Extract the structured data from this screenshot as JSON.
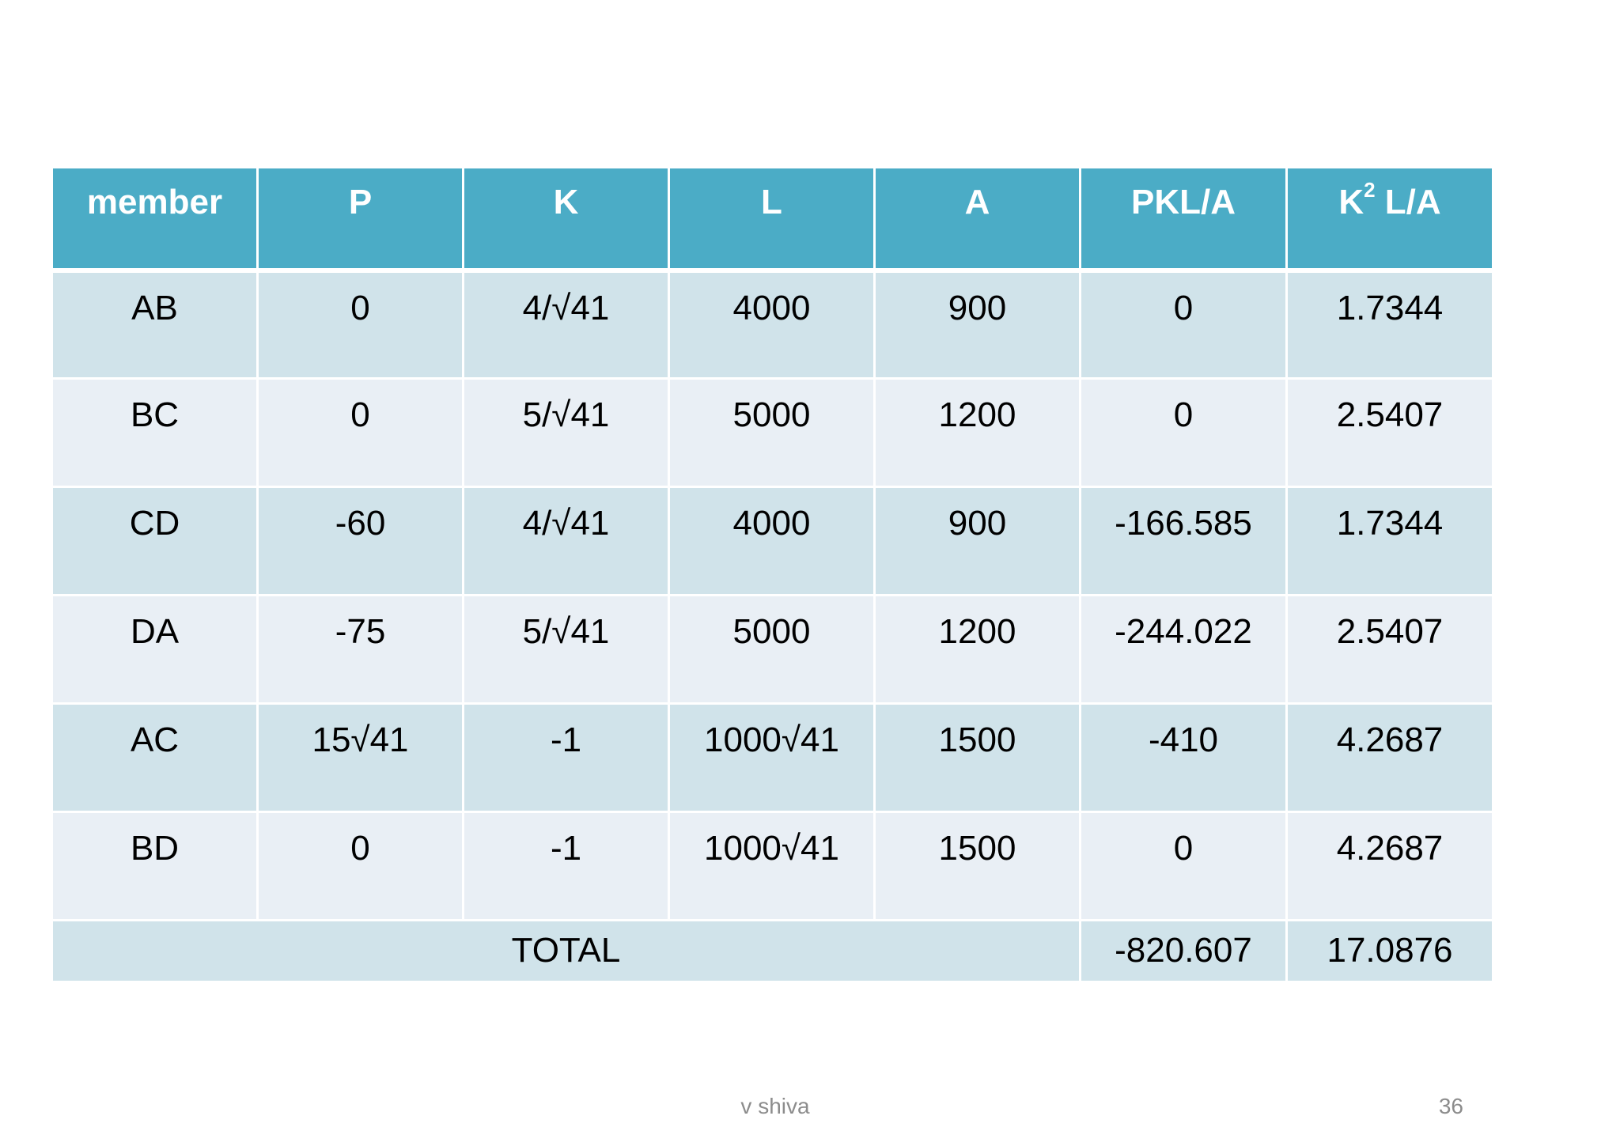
{
  "table": {
    "headers": {
      "member": "member",
      "p": "P",
      "k": "K",
      "l": "L",
      "a": "A",
      "pkla": "PKL/A",
      "k2la_base": "K",
      "k2la_exp": "2",
      "k2la_rest": " L/A"
    },
    "rows": [
      {
        "member": "AB",
        "p": "0",
        "k": "4/√41",
        "l": "4000",
        "a": "900",
        "pkla": "0",
        "k2la": "1.7344"
      },
      {
        "member": "BC",
        "p": "0",
        "k": "5/√41",
        "l": "5000",
        "a": "1200",
        "pkla": "0",
        "k2la": "2.5407"
      },
      {
        "member": "CD",
        "p": "-60",
        "k": "4/√41",
        "l": "4000",
        "a": "900",
        "pkla": "-166.585",
        "k2la": "1.7344"
      },
      {
        "member": "DA",
        "p": "-75",
        "k": "5/√41",
        "l": "5000",
        "a": "1200",
        "pkla": "-244.022",
        "k2la": "2.5407"
      },
      {
        "member": "AC",
        "p": "15√41",
        "k": "-1",
        "l": "1000√41",
        "a": "1500",
        "pkla": "-410",
        "k2la": "4.2687"
      },
      {
        "member": "BD",
        "p": "0",
        "k": "-1",
        "l": "1000√41",
        "a": "1500",
        "pkla": "0",
        "k2la": "4.2687"
      }
    ],
    "total": {
      "label": "TOTAL",
      "pkla": "-820.607",
      "k2la": "17.0876"
    }
  },
  "footer": {
    "author": "v shiva",
    "page_number": "36"
  },
  "colors": {
    "header_bg": "#4bacc6",
    "row_dark": "#d0e3ea",
    "row_light": "#e9eff5"
  }
}
